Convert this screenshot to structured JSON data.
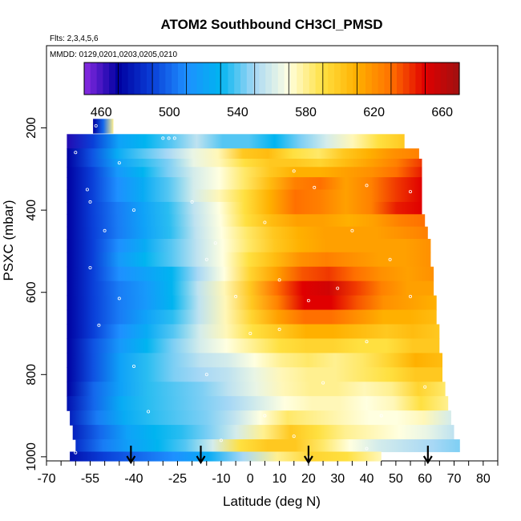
{
  "chart_data": {
    "type": "heatmap",
    "title": "ATOM2 Southbound CH3Cl_PMSD",
    "flights_note": "Flts: 2,3,4,5,6",
    "dates_note": "MMDD: 0129,0201,0203,0205,0210",
    "xlabel": "Latitude (deg N)",
    "ylabel": "PSXC (mbar)",
    "xlim": [
      -70,
      85
    ],
    "ylim": [
      1010,
      0
    ],
    "x_ticks": [
      -70,
      -55,
      -40,
      -25,
      -10,
      0,
      10,
      20,
      30,
      40,
      50,
      60,
      70,
      80
    ],
    "y_ticks": [
      200,
      400,
      600,
      800,
      1000
    ],
    "colorbar": {
      "range": [
        450,
        670
      ],
      "ticks": [
        460,
        500,
        540,
        580,
        620,
        660
      ],
      "colors": [
        "#8a2be2",
        "#0000a0",
        "#0a3fd8",
        "#1e90ff",
        "#00b4f0",
        "#a8d8f5",
        "#ffffe0",
        "#ffe040",
        "#ffb000",
        "#ff7000",
        "#e00000",
        "#a01010"
      ]
    },
    "arrows_latitude": [
      -41,
      -17,
      20,
      61
    ],
    "layers": [
      {
        "p": 190,
        "lat_min": -54,
        "lat_max": -47,
        "values": [
          470,
          500,
          580
        ]
      },
      {
        "p": 235,
        "lat_min": -63,
        "lat_max": 53,
        "values": [
          465,
          490,
          520,
          530,
          540,
          555,
          540,
          540,
          530,
          545,
          560,
          575,
          590,
          600
        ]
      },
      {
        "p": 265,
        "lat_min": -63,
        "lat_max": 58,
        "values": [
          470,
          495,
          525,
          540,
          550,
          565,
          575,
          600,
          605,
          590,
          585,
          600,
          610,
          620,
          625
        ]
      },
      {
        "p": 285,
        "lat_min": -63,
        "lat_max": 59,
        "values": [
          470,
          495,
          520,
          535,
          545,
          565,
          575,
          590,
          600,
          600,
          595,
          605,
          615,
          625,
          640
        ]
      },
      {
        "p": 305,
        "lat_min": -63,
        "lat_max": 59,
        "values": [
          470,
          490,
          515,
          530,
          545,
          560,
          570,
          585,
          600,
          610,
          610,
          615,
          620,
          630,
          645
        ]
      },
      {
        "p": 335,
        "lat_min": -63,
        "lat_max": 59,
        "values": [
          470,
          490,
          510,
          525,
          540,
          560,
          570,
          585,
          605,
          625,
          630,
          615,
          625,
          640,
          650
        ]
      },
      {
        "p": 365,
        "lat_min": -63,
        "lat_max": 59,
        "values": [
          470,
          490,
          510,
          525,
          540,
          560,
          575,
          590,
          610,
          630,
          625,
          615,
          625,
          640,
          650
        ]
      },
      {
        "p": 395,
        "lat_min": -63,
        "lat_max": 59,
        "values": [
          470,
          490,
          505,
          520,
          535,
          555,
          570,
          590,
          610,
          630,
          625,
          615,
          625,
          645,
          650
        ]
      },
      {
        "p": 425,
        "lat_min": -63,
        "lat_max": 60,
        "values": [
          470,
          490,
          505,
          520,
          535,
          555,
          570,
          590,
          605,
          615,
          615,
          610,
          615,
          625,
          630
        ]
      },
      {
        "p": 455,
        "lat_min": -63,
        "lat_max": 61,
        "values": [
          470,
          490,
          505,
          520,
          535,
          555,
          570,
          585,
          600,
          610,
          615,
          615,
          615,
          620,
          625
        ]
      },
      {
        "p": 485,
        "lat_min": -63,
        "lat_max": 62,
        "values": [
          470,
          490,
          510,
          525,
          540,
          555,
          570,
          585,
          600,
          610,
          615,
          615,
          615,
          615,
          620
        ]
      },
      {
        "p": 520,
        "lat_min": -63,
        "lat_max": 62,
        "values": [
          470,
          490,
          515,
          530,
          540,
          555,
          570,
          590,
          605,
          620,
          625,
          620,
          615,
          615,
          620
        ]
      },
      {
        "p": 555,
        "lat_min": -63,
        "lat_max": 63,
        "values": [
          470,
          490,
          510,
          520,
          530,
          550,
          570,
          595,
          615,
          635,
          640,
          630,
          620,
          615,
          620
        ]
      },
      {
        "p": 590,
        "lat_min": -63,
        "lat_max": 63,
        "values": [
          470,
          490,
          505,
          515,
          530,
          555,
          575,
          600,
          630,
          650,
          655,
          640,
          625,
          615,
          615
        ]
      },
      {
        "p": 625,
        "lat_min": -63,
        "lat_max": 64,
        "values": [
          470,
          490,
          505,
          515,
          530,
          555,
          575,
          600,
          625,
          650,
          650,
          635,
          620,
          615,
          610
        ]
      },
      {
        "p": 660,
        "lat_min": -63,
        "lat_max": 64,
        "values": [
          470,
          490,
          505,
          520,
          535,
          555,
          575,
          595,
          615,
          630,
          630,
          620,
          610,
          610,
          605
        ]
      },
      {
        "p": 695,
        "lat_min": -63,
        "lat_max": 65,
        "values": [
          470,
          490,
          510,
          525,
          540,
          560,
          575,
          590,
          600,
          610,
          610,
          605,
          600,
          605,
          600
        ]
      },
      {
        "p": 730,
        "lat_min": -63,
        "lat_max": 65,
        "values": [
          470,
          495,
          515,
          530,
          545,
          560,
          570,
          580,
          590,
          595,
          595,
          590,
          590,
          600,
          600
        ]
      },
      {
        "p": 765,
        "lat_min": -63,
        "lat_max": 66,
        "values": [
          470,
          495,
          520,
          535,
          545,
          555,
          560,
          570,
          580,
          585,
          580,
          585,
          595,
          610,
          605
        ]
      },
      {
        "p": 800,
        "lat_min": -63,
        "lat_max": 66,
        "values": [
          470,
          495,
          520,
          535,
          545,
          550,
          555,
          565,
          575,
          580,
          580,
          585,
          590,
          600,
          600
        ]
      },
      {
        "p": 835,
        "lat_min": -63,
        "lat_max": 67,
        "values": [
          470,
          500,
          520,
          535,
          540,
          545,
          555,
          565,
          575,
          580,
          580,
          575,
          580,
          595,
          585
        ]
      },
      {
        "p": 870,
        "lat_min": -63,
        "lat_max": 68,
        "values": [
          475,
          500,
          525,
          535,
          540,
          545,
          550,
          560,
          570,
          575,
          575,
          570,
          575,
          590,
          580
        ]
      },
      {
        "p": 905,
        "lat_min": -62,
        "lat_max": 69,
        "values": [
          480,
          505,
          525,
          535,
          540,
          545,
          555,
          570,
          585,
          580,
          575,
          570,
          570,
          575,
          560
        ]
      },
      {
        "p": 940,
        "lat_min": -61,
        "lat_max": 70,
        "values": [
          480,
          500,
          520,
          530,
          535,
          545,
          560,
          580,
          600,
          590,
          580,
          575,
          570,
          565,
          555
        ]
      },
      {
        "p": 975,
        "lat_min": -60,
        "lat_max": 72,
        "values": [
          485,
          505,
          520,
          530,
          540,
          560,
          590,
          600,
          600,
          585,
          570,
          560,
          555,
          550,
          545
        ]
      },
      {
        "p": 1000,
        "lat_min": -62,
        "lat_max": 45,
        "values": [
          475,
          490,
          500,
          510,
          525,
          550,
          580,
          595,
          590,
          575
        ]
      }
    ],
    "sample_points": [
      {
        "lat": -53,
        "p": 195
      },
      {
        "lat": -30,
        "p": 225
      },
      {
        "lat": -28,
        "p": 225
      },
      {
        "lat": -26,
        "p": 225
      },
      {
        "lat": -60,
        "p": 260
      },
      {
        "lat": -45,
        "p": 285
      },
      {
        "lat": -56,
        "p": 350
      },
      {
        "lat": -55,
        "p": 380
      },
      {
        "lat": -40,
        "p": 400
      },
      {
        "lat": -20,
        "p": 380
      },
      {
        "lat": 15,
        "p": 305
      },
      {
        "lat": 22,
        "p": 345
      },
      {
        "lat": 40,
        "p": 340
      },
      {
        "lat": 55,
        "p": 355
      },
      {
        "lat": -50,
        "p": 450
      },
      {
        "lat": -12,
        "p": 480
      },
      {
        "lat": 5,
        "p": 430
      },
      {
        "lat": 35,
        "p": 450
      },
      {
        "lat": -55,
        "p": 540
      },
      {
        "lat": -15,
        "p": 520
      },
      {
        "lat": 10,
        "p": 570
      },
      {
        "lat": 30,
        "p": 590
      },
      {
        "lat": 48,
        "p": 520
      },
      {
        "lat": -45,
        "p": 615
      },
      {
        "lat": -5,
        "p": 610
      },
      {
        "lat": 20,
        "p": 620
      },
      {
        "lat": 55,
        "p": 610
      },
      {
        "lat": -52,
        "p": 680
      },
      {
        "lat": 0,
        "p": 700
      },
      {
        "lat": 10,
        "p": 690
      },
      {
        "lat": 40,
        "p": 720
      },
      {
        "lat": -40,
        "p": 780
      },
      {
        "lat": -15,
        "p": 800
      },
      {
        "lat": 25,
        "p": 820
      },
      {
        "lat": 60,
        "p": 830
      },
      {
        "lat": -35,
        "p": 890
      },
      {
        "lat": 5,
        "p": 900
      },
      {
        "lat": 45,
        "p": 900
      },
      {
        "lat": -10,
        "p": 960
      },
      {
        "lat": 15,
        "p": 950
      },
      {
        "lat": 40,
        "p": 980
      },
      {
        "lat": -60,
        "p": 990
      },
      {
        "lat": 20,
        "p": 1000
      }
    ]
  }
}
